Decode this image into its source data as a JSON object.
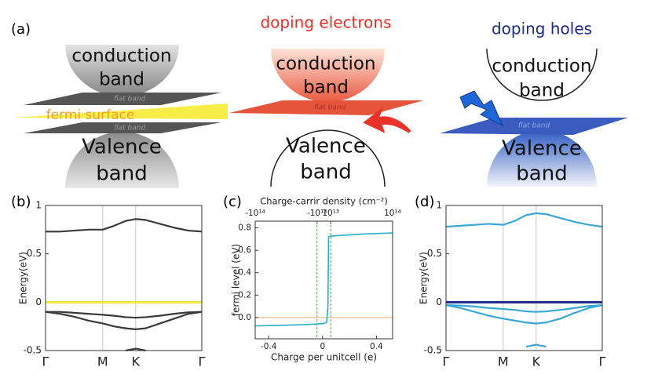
{
  "figure_label": "(a)",
  "diagrams": [
    {
      "conduction_band": [
        "conduction",
        "band"
      ],
      "plane_labels": [
        "flat band",
        "flat band"
      ],
      "fermi_surface": "fermi surface",
      "valence_band": [
        "Valence",
        "band"
      ]
    },
    {
      "title": "doping electrons",
      "conduction_band": [
        "conduction",
        "band"
      ],
      "plane_labels": [
        "flat band"
      ],
      "valence_band": [
        "Valence",
        "band"
      ]
    },
    {
      "title": "doping holes",
      "conduction_band": [
        "conduction",
        "band"
      ],
      "plane_labels": [
        "flat band"
      ],
      "valence_band": [
        "Valence",
        "band"
      ]
    }
  ],
  "chart_data": [
    {
      "type": "line",
      "panel_label": "(b)",
      "y_label": "Energy(eV)",
      "x": [
        0,
        0.25,
        0.5,
        0.75,
        1,
        1.2,
        1.4,
        1.577,
        1.75,
        2.0,
        2.25,
        2.5,
        2.732
      ],
      "xlim": [
        0,
        2.732
      ],
      "xticks": [
        {
          "value": 0,
          "label": "Γ"
        },
        {
          "value": 1,
          "label": "M"
        },
        {
          "value": 1.577,
          "label": "K"
        },
        {
          "value": 2.732,
          "label": "Γ"
        }
      ],
      "xgrid": true,
      "ylim": [
        -0.5,
        1
      ],
      "yticks": [
        -0.5,
        0,
        0.5,
        1
      ],
      "series": [
        {
          "color": "#3a3a3a",
          "values": [
            0.73,
            0.73,
            0.74,
            0.75,
            0.75,
            0.79,
            0.84,
            0.86,
            0.85,
            0.81,
            0.77,
            0.74,
            0.73
          ]
        },
        {
          "color": "#f2e53a",
          "values": [
            0,
            0,
            0,
            0,
            0,
            0,
            0,
            0,
            0,
            0,
            0,
            0,
            0
          ]
        },
        {
          "color": "#3a3a3a",
          "values": [
            -0.1,
            -0.1,
            -0.11,
            -0.12,
            -0.13,
            -0.14,
            -0.155,
            -0.16,
            -0.155,
            -0.14,
            -0.12,
            -0.105,
            -0.1
          ]
        },
        {
          "color": "#3a3a3a",
          "values": [
            -0.1,
            -0.12,
            -0.15,
            -0.19,
            -0.22,
            -0.25,
            -0.27,
            -0.28,
            -0.27,
            -0.22,
            -0.17,
            -0.12,
            -0.1
          ]
        },
        {
          "color": "#3a3a3a",
          "values": [
            null,
            null,
            null,
            null,
            null,
            null,
            -0.5,
            -0.48,
            -0.5,
            null,
            null,
            null,
            null
          ]
        }
      ]
    },
    {
      "type": "line",
      "panel_label": "(c)",
      "y_label": "fermi level (eV)",
      "x_label": "Charge per unitcell (e)",
      "x2_label": "Charge-carrir density (cm⁻²)",
      "x": [
        -0.5,
        -0.3,
        -0.1,
        0.0,
        0.03,
        0.04,
        0.045,
        0.05,
        0.1,
        0.3,
        0.52
      ],
      "xlim": [
        -0.5,
        0.52
      ],
      "xticks": [
        -0.4,
        0,
        0.4
      ],
      "x2lim": [
        -100000000000000.0,
        100000000000000.0
      ],
      "x2ticks": [
        {
          "value": -100000000000000.0,
          "label": "-10¹⁴"
        },
        {
          "value": -10000000000000.0,
          "label": "-10¹³"
        },
        {
          "value": 10000000000000.0,
          "label": "10¹³"
        },
        {
          "value": 100000000000000.0,
          "label": "10¹⁴"
        }
      ],
      "ylim": [
        -0.19,
        0.86
      ],
      "yticks": [
        {
          "value": 0,
          "label": "0.0"
        },
        0.2,
        0.4,
        0.6,
        0.8
      ],
      "reference_line": {
        "y": 0,
        "color": "#f3b98c"
      },
      "x2_lines": {
        "values": [
          -10000000000000.0,
          10000000000000.0
        ],
        "color": "#4aa83a"
      },
      "series": [
        {
          "color": "#25b2c4",
          "values": [
            -0.075,
            -0.07,
            -0.062,
            -0.055,
            -0.045,
            0.1,
            0.72,
            0.725,
            0.73,
            0.745,
            0.755
          ]
        }
      ]
    },
    {
      "type": "line",
      "panel_label": "(d)",
      "y_label": "Energy(eV)",
      "x": [
        0,
        0.25,
        0.5,
        0.75,
        1,
        1.2,
        1.4,
        1.577,
        1.75,
        2.0,
        2.25,
        2.5,
        2.732
      ],
      "xlim": [
        0,
        2.732
      ],
      "xticks": [
        {
          "value": 0,
          "label": "Γ"
        },
        {
          "value": 1,
          "label": "M"
        },
        {
          "value": 1.577,
          "label": "K"
        },
        {
          "value": 2.732,
          "label": "Γ"
        }
      ],
      "xgrid": true,
      "ylim": [
        -0.5,
        1
      ],
      "yticks": [
        -0.5,
        0,
        0.5,
        1
      ],
      "series": [
        {
          "color": "#3aa6d6",
          "values": [
            0.78,
            0.79,
            0.8,
            0.81,
            0.8,
            0.84,
            0.9,
            0.92,
            0.91,
            0.87,
            0.83,
            0.8,
            0.78
          ]
        },
        {
          "color": "#1b2a8c",
          "values": [
            0,
            0,
            0,
            0,
            0,
            0,
            0,
            0,
            0,
            0,
            0,
            0,
            0
          ]
        },
        {
          "color": "#3aa6d6",
          "values": [
            -0.03,
            -0.035,
            -0.045,
            -0.06,
            -0.07,
            -0.08,
            -0.095,
            -0.1,
            -0.095,
            -0.08,
            -0.06,
            -0.04,
            -0.03
          ]
        },
        {
          "color": "#3aa6d6",
          "values": [
            -0.03,
            -0.06,
            -0.1,
            -0.14,
            -0.17,
            -0.19,
            -0.21,
            -0.22,
            -0.21,
            -0.17,
            -0.11,
            -0.06,
            -0.03
          ]
        },
        {
          "color": "#3aa6d6",
          "values": [
            null,
            null,
            null,
            null,
            null,
            null,
            -0.46,
            -0.44,
            -0.46,
            null,
            null,
            null,
            null
          ]
        }
      ]
    }
  ]
}
